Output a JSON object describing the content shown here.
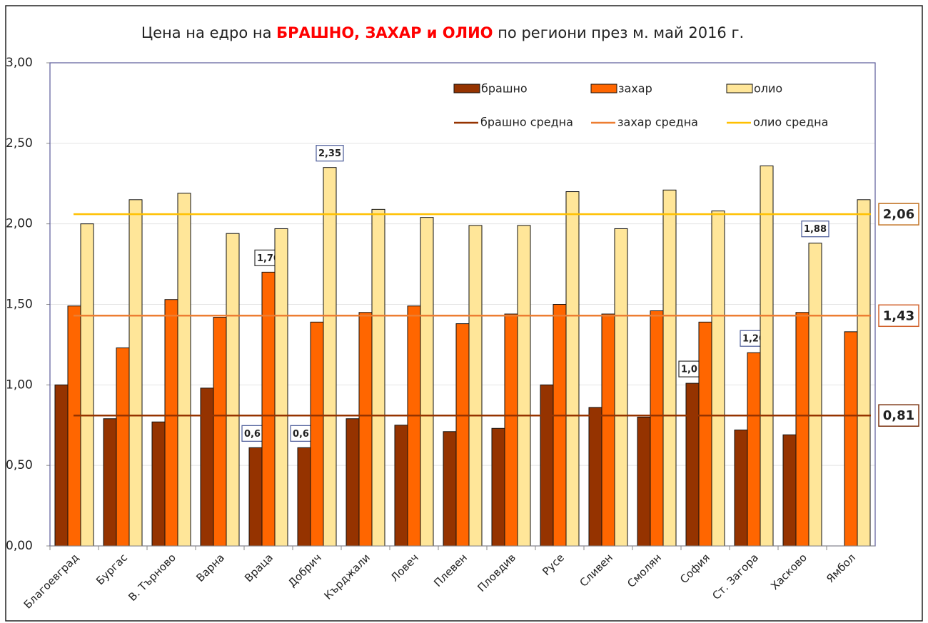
{
  "chart_data": {
    "type": "bar",
    "title": [
      "Цена на едро на ",
      "БРАШНО, ЗАХАР и ОЛИО",
      " по региони през м. май 2016 г."
    ],
    "categories": [
      "Благоевград",
      "Бургас",
      "В. Търново",
      "Варна",
      "Враца",
      "Добрич",
      "Кърджали",
      "Ловеч",
      "Плевен",
      "Пловдив",
      "Русе",
      "Сливен",
      "Смолян",
      "София",
      "Ст. Загора",
      "Хасково",
      "Ямбол"
    ],
    "series": [
      {
        "name": "брашно",
        "color": "#953300",
        "values": [
          1.0,
          0.79,
          0.77,
          0.98,
          0.61,
          0.61,
          0.79,
          0.75,
          0.71,
          0.73,
          1.0,
          0.86,
          0.8,
          1.01,
          0.72,
          0.69,
          null
        ],
        "value_labels": [
          null,
          null,
          null,
          null,
          "0,61",
          "0,61",
          null,
          null,
          null,
          null,
          null,
          null,
          null,
          "1,01",
          null,
          null,
          null
        ]
      },
      {
        "name": "захар",
        "color": "#ff6600",
        "values": [
          1.49,
          1.23,
          1.53,
          1.42,
          1.7,
          1.39,
          1.45,
          1.49,
          1.38,
          1.44,
          1.5,
          1.44,
          1.46,
          1.39,
          1.2,
          1.45,
          1.33
        ],
        "value_labels": [
          null,
          null,
          null,
          null,
          "1,70",
          null,
          null,
          null,
          null,
          null,
          null,
          null,
          null,
          null,
          "1,20",
          null,
          null
        ]
      },
      {
        "name": "олио",
        "color": "#ffe699",
        "values": [
          2.0,
          2.15,
          2.19,
          1.94,
          1.97,
          2.35,
          2.09,
          2.04,
          1.99,
          1.99,
          2.2,
          1.97,
          2.21,
          2.08,
          2.36,
          1.88,
          2.15
        ],
        "value_labels": [
          null,
          null,
          null,
          null,
          null,
          "2,35",
          null,
          null,
          null,
          null,
          null,
          null,
          null,
          null,
          null,
          "1,88",
          null
        ]
      }
    ],
    "averages": [
      {
        "name": "брашно средна",
        "color": "#953300",
        "label_color": "#7a3210",
        "value": 0.81,
        "label": "0,81"
      },
      {
        "name": "захар средна",
        "color": "#ed7d31",
        "label_color": "#d0602a",
        "value": 1.43,
        "label": "1,43"
      },
      {
        "name": "олио средна",
        "color": "#ffc000",
        "label_color": "#c07020",
        "value": 2.06,
        "label": "2,06"
      }
    ],
    "ylim": [
      0,
      3
    ],
    "yticks": [
      {
        "value": 0,
        "label": "0,00"
      },
      {
        "value": 0.5,
        "label": "0,50"
      },
      {
        "value": 1,
        "label": "1,00"
      },
      {
        "value": 1.5,
        "label": "1,50"
      },
      {
        "value": 2,
        "label": "2,00"
      },
      {
        "value": 2.5,
        "label": "2,50"
      },
      {
        "value": 3,
        "label": "3,00"
      }
    ],
    "grid": true
  }
}
